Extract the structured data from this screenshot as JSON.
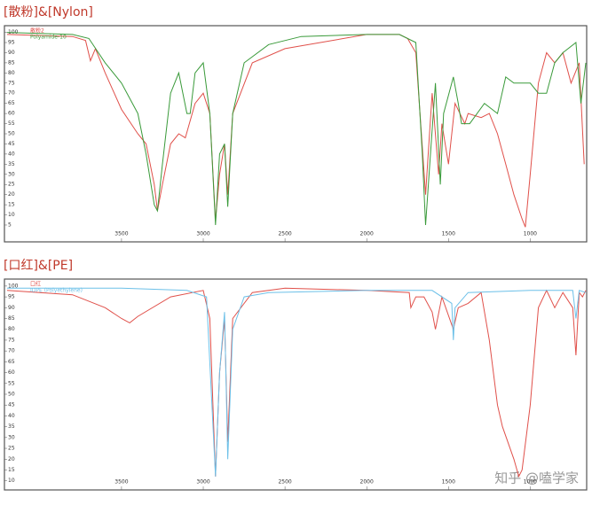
{
  "chart_data": [
    {
      "type": "line",
      "title": "[散粉]&[Nylon]",
      "xlim": [
        4200,
        660
      ],
      "ylim": [
        -2,
        102
      ],
      "xticks": [
        3500,
        3000,
        2500,
        2000,
        1500,
        1000
      ],
      "yticks": [
        5,
        10,
        15,
        20,
        25,
        30,
        35,
        40,
        45,
        50,
        55,
        60,
        65,
        70,
        75,
        80,
        85,
        90,
        95,
        100
      ],
      "legend": "top-left",
      "series": [
        {
          "name": "散粉2",
          "color": "#e0504a",
          "x": [
            4200,
            3800,
            3720,
            3690,
            3660,
            3600,
            3500,
            3400,
            3350,
            3300,
            3280,
            3250,
            3200,
            3150,
            3110,
            3050,
            3000,
            2960,
            2925,
            2900,
            2870,
            2850,
            2820,
            2700,
            2500,
            2000,
            1800,
            1750,
            1700,
            1640,
            1600,
            1560,
            1540,
            1500,
            1460,
            1400,
            1380,
            1300,
            1250,
            1200,
            1150,
            1100,
            1050,
            1030,
            1000,
            950,
            900,
            850,
            800,
            750,
            700,
            670
          ],
          "values": [
            99,
            98,
            96,
            86,
            92,
            80,
            62,
            50,
            45,
            25,
            12,
            25,
            45,
            50,
            48,
            65,
            70,
            60,
            7,
            30,
            45,
            20,
            60,
            85,
            92,
            99,
            99,
            97,
            90,
            20,
            70,
            30,
            55,
            35,
            65,
            55,
            60,
            58,
            60,
            50,
            35,
            20,
            8,
            4,
            30,
            75,
            90,
            85,
            90,
            75,
            85,
            35
          ]
        },
        {
          "name": "Polyamide-10",
          "color": "#3a9a3a",
          "x": [
            4200,
            3800,
            3700,
            3600,
            3500,
            3400,
            3350,
            3300,
            3280,
            3250,
            3200,
            3150,
            3100,
            3080,
            3050,
            3000,
            2960,
            2925,
            2900,
            2870,
            2850,
            2820,
            2750,
            2600,
            2400,
            2000,
            1800,
            1700,
            1660,
            1640,
            1610,
            1580,
            1550,
            1530,
            1470,
            1440,
            1420,
            1370,
            1280,
            1200,
            1150,
            1100,
            1000,
            950,
            900,
            850,
            800,
            720,
            690,
            660
          ],
          "values": [
            100,
            99,
            97,
            85,
            75,
            60,
            40,
            15,
            12,
            35,
            70,
            80,
            60,
            60,
            80,
            85,
            60,
            5,
            40,
            45,
            14,
            60,
            85,
            94,
            98,
            99,
            99,
            95,
            40,
            5,
            40,
            75,
            25,
            60,
            78,
            65,
            55,
            55,
            65,
            60,
            78,
            75,
            75,
            70,
            70,
            85,
            90,
            95,
            65,
            85
          ]
        }
      ]
    },
    {
      "type": "line",
      "title": "[口红]&[PE]",
      "xlim": [
        4200,
        660
      ],
      "ylim": [
        7,
        102
      ],
      "xticks": [
        3500,
        3000,
        2500,
        2000,
        1500,
        1000
      ],
      "yticks": [
        10,
        15,
        20,
        25,
        30,
        35,
        40,
        45,
        50,
        55,
        60,
        65,
        70,
        75,
        80,
        85,
        90,
        95,
        100
      ],
      "legend": "top-left",
      "series": [
        {
          "name": "口红",
          "color": "#e0504a",
          "x": [
            4200,
            3800,
            3600,
            3500,
            3450,
            3400,
            3200,
            3000,
            2960,
            2925,
            2900,
            2870,
            2850,
            2820,
            2700,
            2500,
            2000,
            1740,
            1730,
            1700,
            1650,
            1600,
            1580,
            1540,
            1470,
            1440,
            1380,
            1300,
            1250,
            1200,
            1170,
            1100,
            1070,
            1050,
            1000,
            950,
            900,
            850,
            800,
            740,
            720,
            700,
            680,
            660
          ],
          "values": [
            98,
            96,
            90,
            85,
            83,
            86,
            95,
            98,
            85,
            12,
            60,
            85,
            28,
            85,
            97,
            99,
            98,
            97,
            90,
            95,
            95,
            88,
            80,
            95,
            80,
            90,
            92,
            97,
            75,
            45,
            35,
            20,
            12,
            15,
            45,
            90,
            98,
            90,
            97,
            90,
            68,
            97,
            95,
            98
          ]
        },
        {
          "name": "IDPE (Polyethylene)",
          "color": "#6cc0e8",
          "x": [
            4200,
            3500,
            3100,
            2980,
            2925,
            2900,
            2870,
            2850,
            2820,
            2750,
            2600,
            2000,
            1600,
            1480,
            1470,
            1460,
            1380,
            1000,
            740,
            720,
            700,
            660
          ],
          "values": [
            99,
            99,
            98,
            95,
            12,
            60,
            88,
            20,
            80,
            95,
            97,
            98,
            98,
            92,
            75,
            90,
            97,
            98,
            98,
            85,
            98,
            97
          ]
        }
      ]
    }
  ],
  "watermark": "知乎 @嗑学家"
}
